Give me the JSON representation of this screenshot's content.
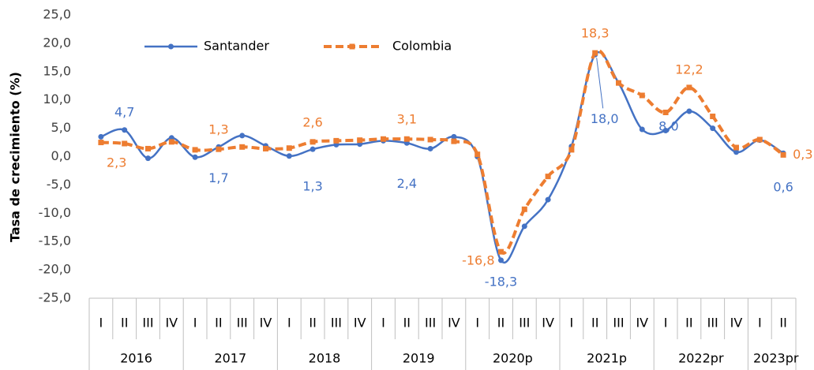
{
  "chart_data": {
    "type": "line",
    "y_label": "Tasa de crecimiento (%)",
    "groups": [
      {
        "label": "2016",
        "categories": [
          "I",
          "II",
          "III",
          "IV"
        ]
      },
      {
        "label": "2017",
        "categories": [
          "I",
          "II",
          "III",
          "IV"
        ]
      },
      {
        "label": "2018",
        "categories": [
          "I",
          "II",
          "III",
          "IV"
        ]
      },
      {
        "label": "2019",
        "categories": [
          "I",
          "II",
          "III",
          "IV"
        ]
      },
      {
        "label": "2020p",
        "categories": [
          "I",
          "II",
          "III",
          "IV"
        ]
      },
      {
        "label": "2021p",
        "categories": [
          "I",
          "II",
          "III",
          "IV"
        ]
      },
      {
        "label": "2022pr",
        "categories": [
          "I",
          "II",
          "III",
          "IV"
        ]
      },
      {
        "label": "2023pr",
        "categories": [
          "I",
          "II"
        ]
      }
    ],
    "series": [
      {
        "name": "Santander",
        "color": "#4472c4",
        "marker": "circle",
        "dashed": false,
        "values": [
          3.5,
          4.7,
          -0.3,
          3.3,
          -0.1,
          1.7,
          3.7,
          1.9,
          0.1,
          1.3,
          2.1,
          2.2,
          2.8,
          2.4,
          1.4,
          3.5,
          0.0,
          -18.3,
          -12.3,
          -7.6,
          1.8,
          18.0,
          13.0,
          4.8,
          4.6,
          8.0,
          5.0,
          0.8,
          2.9,
          0.6
        ],
        "value_labels": [
          null,
          "4,7",
          null,
          null,
          null,
          "1,7",
          null,
          null,
          null,
          "1,3",
          null,
          null,
          null,
          "2,4",
          null,
          null,
          null,
          "-18,3",
          null,
          null,
          null,
          "18,0",
          null,
          null,
          null,
          "8,0",
          null,
          null,
          null,
          "0,6"
        ]
      },
      {
        "name": "Colombia",
        "color": "#ed7d31",
        "marker": "square",
        "dashed": true,
        "values": [
          2.5,
          2.3,
          1.4,
          2.6,
          1.2,
          1.3,
          1.7,
          1.4,
          1.5,
          2.6,
          2.8,
          2.9,
          3.1,
          3.1,
          3.0,
          2.7,
          0.4,
          -16.8,
          -9.3,
          -3.5,
          1.2,
          18.3,
          13.0,
          10.8,
          7.8,
          12.2,
          7.1,
          1.6,
          3.0,
          0.3
        ],
        "value_labels": [
          null,
          "2,3",
          null,
          null,
          null,
          "1,3",
          null,
          null,
          null,
          "2,6",
          null,
          null,
          null,
          "3,1",
          null,
          null,
          null,
          "-16,8",
          null,
          null,
          null,
          "18,3",
          null,
          null,
          null,
          "12,2",
          null,
          null,
          null,
          "0,3"
        ]
      }
    ],
    "ylim": [
      -25,
      25
    ],
    "yticks": [
      {
        "value": -25,
        "label": "-25,0"
      },
      {
        "value": -20,
        "label": "-20,0"
      },
      {
        "value": -15,
        "label": "-15,0"
      },
      {
        "value": -10,
        "label": "-10,0"
      },
      {
        "value": -5,
        "label": "-5,0"
      },
      {
        "value": 0,
        "label": "0,0"
      },
      {
        "value": 5,
        "label": "5,0"
      },
      {
        "value": 10,
        "label": "10,0"
      },
      {
        "value": 15,
        "label": "15,0"
      },
      {
        "value": 20,
        "label": "20,0"
      },
      {
        "value": 25,
        "label": "25,0"
      }
    ],
    "grid": false,
    "legend": "top-left"
  }
}
